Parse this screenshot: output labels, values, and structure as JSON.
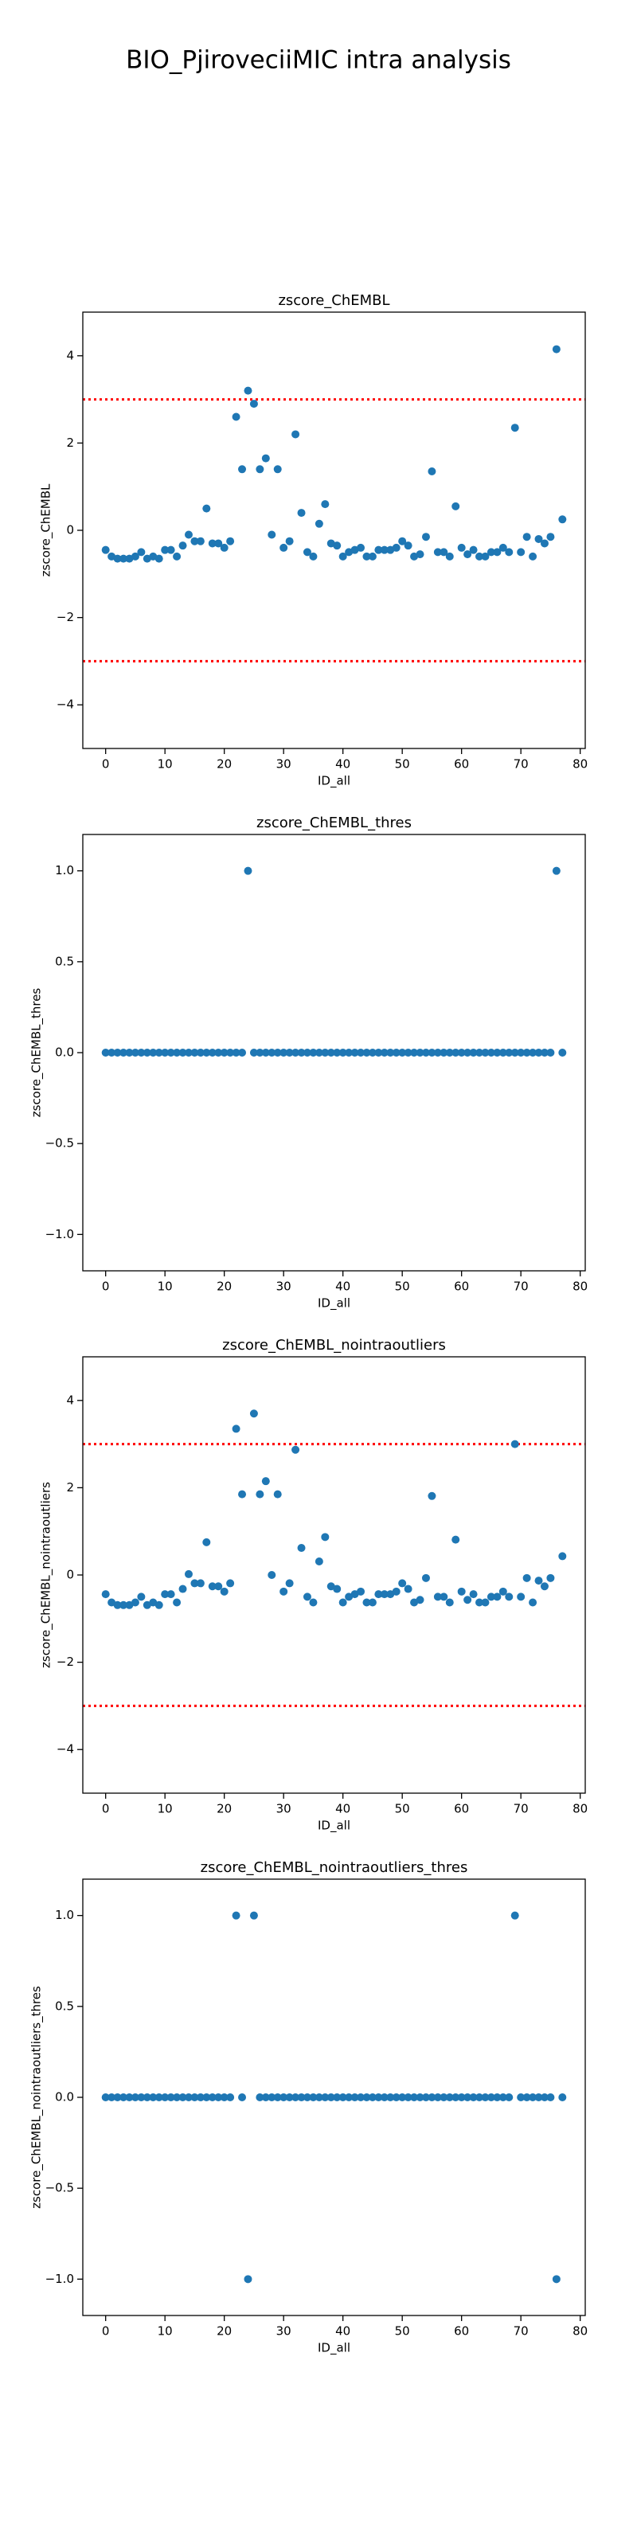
{
  "title": "BIO_PjiroveciiMIC intra analysis",
  "chart_data": [
    {
      "type": "scatter",
      "title": "zscore_ChEMBL",
      "xlabel": "ID_all",
      "ylabel": "zscore_ChEMBL",
      "color": "#1f77b4",
      "x": [
        0,
        1,
        2,
        3,
        4,
        5,
        6,
        7,
        8,
        9,
        10,
        11,
        12,
        13,
        14,
        15,
        16,
        17,
        18,
        19,
        20,
        21,
        22,
        23,
        24,
        25,
        26,
        27,
        28,
        29,
        30,
        31,
        32,
        33,
        34,
        35,
        36,
        37,
        38,
        39,
        40,
        41,
        42,
        43,
        44,
        45,
        46,
        47,
        48,
        49,
        50,
        51,
        52,
        53,
        54,
        55,
        56,
        57,
        58,
        59,
        60,
        61,
        62,
        63,
        64,
        65,
        66,
        67,
        68,
        69,
        70,
        71,
        72,
        73,
        74,
        75,
        76,
        77
      ],
      "values": [
        -0.45,
        -0.6,
        -0.65,
        -0.65,
        -0.65,
        -0.6,
        -0.5,
        -0.65,
        -0.6,
        -0.65,
        -0.45,
        -0.45,
        -0.6,
        -0.35,
        -0.1,
        -0.25,
        -0.25,
        0.5,
        -0.3,
        -0.3,
        -0.4,
        -0.25,
        2.6,
        1.4,
        3.2,
        2.9,
        1.4,
        1.65,
        -0.1,
        1.4,
        -0.4,
        -0.25,
        2.2,
        0.4,
        -0.5,
        -0.6,
        0.15,
        0.6,
        -0.3,
        -0.35,
        -0.6,
        -0.5,
        -0.45,
        -0.4,
        -0.6,
        -0.6,
        -0.45,
        -0.45,
        -0.45,
        -0.4,
        -0.25,
        -0.35,
        -0.6,
        -0.55,
        -0.15,
        1.35,
        -0.5,
        -0.5,
        -0.6,
        0.55,
        -0.4,
        -0.55,
        -0.45,
        -0.6,
        -0.6,
        -0.5,
        -0.5,
        -0.4,
        -0.5,
        2.35,
        -0.5,
        -0.15,
        -0.6,
        -0.2,
        -0.3,
        -0.15,
        4.15,
        0.25
      ],
      "hlines": [
        3,
        -3
      ],
      "hline_color": "#ff0000",
      "xlim": [
        -3.85,
        80.85
      ],
      "ylim": [
        -5,
        5
      ],
      "xticks": [
        0,
        10,
        20,
        30,
        40,
        50,
        60,
        70,
        80
      ],
      "yticks": [
        {
          "value": -4,
          "label": "−4"
        },
        {
          "value": -2,
          "label": "−2"
        },
        0,
        2,
        4
      ]
    },
    {
      "type": "scatter",
      "title": "zscore_ChEMBL_thres",
      "xlabel": "ID_all",
      "ylabel": "zscore_ChEMBL_thres",
      "color": "#1f77b4",
      "x": [
        0,
        1,
        2,
        3,
        4,
        5,
        6,
        7,
        8,
        9,
        10,
        11,
        12,
        13,
        14,
        15,
        16,
        17,
        18,
        19,
        20,
        21,
        22,
        23,
        24,
        25,
        26,
        27,
        28,
        29,
        30,
        31,
        32,
        33,
        34,
        35,
        36,
        37,
        38,
        39,
        40,
        41,
        42,
        43,
        44,
        45,
        46,
        47,
        48,
        49,
        50,
        51,
        52,
        53,
        54,
        55,
        56,
        57,
        58,
        59,
        60,
        61,
        62,
        63,
        64,
        65,
        66,
        67,
        68,
        69,
        70,
        71,
        72,
        73,
        74,
        75,
        76,
        77
      ],
      "values": [
        0,
        0,
        0,
        0,
        0,
        0,
        0,
        0,
        0,
        0,
        0,
        0,
        0,
        0,
        0,
        0,
        0,
        0,
        0,
        0,
        0,
        0,
        0,
        0,
        1,
        0,
        0,
        0,
        0,
        0,
        0,
        0,
        0,
        0,
        0,
        0,
        0,
        0,
        0,
        0,
        0,
        0,
        0,
        0,
        0,
        0,
        0,
        0,
        0,
        0,
        0,
        0,
        0,
        0,
        0,
        0,
        0,
        0,
        0,
        0,
        0,
        0,
        0,
        0,
        0,
        0,
        0,
        0,
        0,
        0,
        0,
        0,
        0,
        0,
        0,
        0,
        1,
        0
      ],
      "xlim": [
        -3.85,
        80.85
      ],
      "ylim": [
        -1.2,
        1.2
      ],
      "xticks": [
        0,
        10,
        20,
        30,
        40,
        50,
        60,
        70,
        80
      ],
      "yticks": [
        {
          "value": -1,
          "label": "−1.0"
        },
        {
          "value": -0.5,
          "label": "−0.5"
        },
        {
          "value": 0,
          "label": "0.0"
        },
        0.5,
        {
          "value": 1,
          "label": "1.0"
        }
      ]
    },
    {
      "type": "scatter",
      "title": "zscore_ChEMBL_nointraoutliers",
      "xlabel": "ID_all",
      "ylabel": "zscore_ChEMBL_nointraoutliers",
      "color": "#1f77b4",
      "x": [
        0,
        1,
        2,
        3,
        4,
        5,
        6,
        7,
        8,
        9,
        10,
        11,
        12,
        13,
        14,
        15,
        16,
        17,
        18,
        19,
        20,
        21,
        22,
        23,
        24,
        25,
        26,
        27,
        28,
        29,
        30,
        31,
        32,
        33,
        34,
        35,
        36,
        37,
        38,
        39,
        40,
        41,
        42,
        43,
        44,
        45,
        46,
        47,
        48,
        49,
        50,
        51,
        52,
        53,
        54,
        55,
        56,
        57,
        58,
        59,
        60,
        61,
        62,
        63,
        64,
        65,
        66,
        67,
        68,
        69,
        70,
        71,
        72,
        73,
        74,
        75,
        76,
        77
      ],
      "values": [
        -0.44,
        -0.63,
        -0.69,
        -0.69,
        -0.69,
        -0.63,
        -0.5,
        -0.69,
        -0.63,
        -0.69,
        -0.44,
        -0.44,
        -0.63,
        -0.32,
        0.02,
        -0.19,
        -0.19,
        0.75,
        -0.26,
        -0.26,
        -0.38,
        -0.19,
        3.35,
        1.85,
        null,
        3.7,
        1.85,
        2.15,
        0.0,
        1.85,
        -0.38,
        -0.19,
        2.87,
        0.62,
        -0.5,
        -0.63,
        0.31,
        0.87,
        -0.26,
        -0.32,
        -0.63,
        -0.5,
        -0.44,
        -0.38,
        -0.63,
        -0.63,
        -0.44,
        -0.44,
        -0.44,
        -0.38,
        -0.19,
        -0.32,
        -0.63,
        -0.57,
        -0.07,
        1.81,
        -0.5,
        -0.5,
        -0.63,
        0.81,
        -0.38,
        -0.57,
        -0.44,
        -0.63,
        -0.63,
        -0.5,
        -0.5,
        -0.38,
        -0.5,
        3.0,
        -0.5,
        -0.07,
        -0.63,
        -0.13,
        -0.26,
        -0.07,
        null,
        0.43
      ],
      "hlines": [
        3,
        -3
      ],
      "hline_color": "#ff0000",
      "xlim": [
        -3.85,
        80.85
      ],
      "ylim": [
        -5,
        5
      ],
      "xticks": [
        0,
        10,
        20,
        30,
        40,
        50,
        60,
        70,
        80
      ],
      "yticks": [
        {
          "value": -4,
          "label": "−4"
        },
        {
          "value": -2,
          "label": "−2"
        },
        0,
        2,
        4
      ]
    },
    {
      "type": "scatter",
      "title": "zscore_ChEMBL_nointraoutliers_thres",
      "xlabel": "ID_all",
      "ylabel": "zscore_ChEMBL_nointraoutliers_thres",
      "color": "#1f77b4",
      "x": [
        0,
        1,
        2,
        3,
        4,
        5,
        6,
        7,
        8,
        9,
        10,
        11,
        12,
        13,
        14,
        15,
        16,
        17,
        18,
        19,
        20,
        21,
        22,
        23,
        24,
        25,
        26,
        27,
        28,
        29,
        30,
        31,
        32,
        33,
        34,
        35,
        36,
        37,
        38,
        39,
        40,
        41,
        42,
        43,
        44,
        45,
        46,
        47,
        48,
        49,
        50,
        51,
        52,
        53,
        54,
        55,
        56,
        57,
        58,
        59,
        60,
        61,
        62,
        63,
        64,
        65,
        66,
        67,
        68,
        69,
        70,
        71,
        72,
        73,
        74,
        75,
        76,
        77
      ],
      "values": [
        0,
        0,
        0,
        0,
        0,
        0,
        0,
        0,
        0,
        0,
        0,
        0,
        0,
        0,
        0,
        0,
        0,
        0,
        0,
        0,
        0,
        0,
        1,
        0,
        -1,
        1,
        0,
        0,
        0,
        0,
        0,
        0,
        0,
        0,
        0,
        0,
        0,
        0,
        0,
        0,
        0,
        0,
        0,
        0,
        0,
        0,
        0,
        0,
        0,
        0,
        0,
        0,
        0,
        0,
        0,
        0,
        0,
        0,
        0,
        0,
        0,
        0,
        0,
        0,
        0,
        0,
        0,
        0,
        0,
        1,
        0,
        0,
        0,
        0,
        0,
        0,
        -1,
        0
      ],
      "xlim": [
        -3.85,
        80.85
      ],
      "ylim": [
        -1.2,
        1.2
      ],
      "xticks": [
        0,
        10,
        20,
        30,
        40,
        50,
        60,
        70,
        80
      ],
      "yticks": [
        {
          "value": -1,
          "label": "−1.0"
        },
        {
          "value": -0.5,
          "label": "−0.5"
        },
        {
          "value": 0,
          "label": "0.0"
        },
        0.5,
        {
          "value": 1,
          "label": "1.0"
        }
      ]
    }
  ]
}
